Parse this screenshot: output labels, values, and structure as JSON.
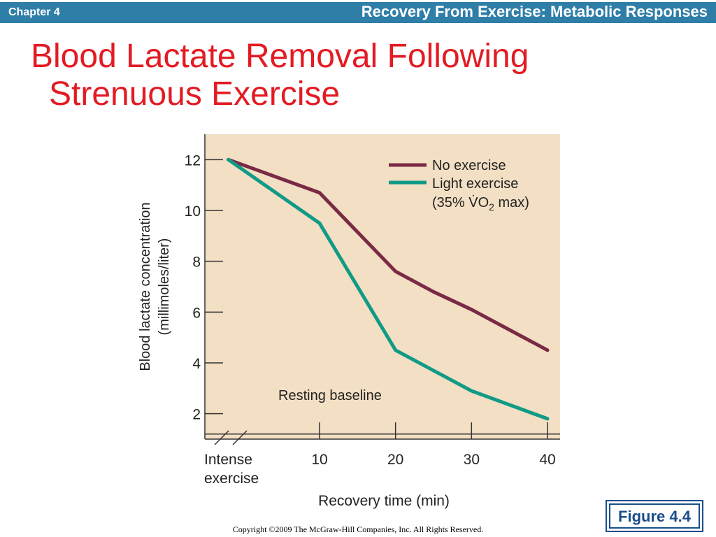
{
  "header": {
    "chapter": "Chapter 4",
    "section_title": "Recovery From Exercise: Metabolic Responses"
  },
  "slide": {
    "title_line1": "Blood Lactate Removal Following",
    "title_line2": "Strenuous Exercise"
  },
  "chart_data": {
    "type": "line",
    "ylabel_line1": "Blood lactate concentration",
    "ylabel_line2": "(millimoles/liter)",
    "xlabel": "Recovery time (min)",
    "ylim": [
      1,
      13
    ],
    "xlim": [
      -5,
      42
    ],
    "yticks": [
      2,
      4,
      6,
      8,
      10,
      12
    ],
    "xticks": [
      10,
      20,
      30,
      40
    ],
    "x_start_label_line1": "Intense",
    "x_start_label_line2": "exercise",
    "baseline": {
      "value": 1.2,
      "label": "Resting baseline"
    },
    "legend": {
      "placement": "top-right",
      "entries": [
        {
          "label": "No exercise"
        },
        {
          "label_line1": "Light exercise",
          "label_line2_prefix": "(35% V̇O",
          "label_line2_sub": "2",
          "label_line2_suffix": " max)"
        }
      ]
    },
    "series": [
      {
        "color": "#7a2a44",
        "points": [
          [
            -2,
            12.0
          ],
          [
            10,
            10.7
          ],
          [
            20,
            7.6
          ],
          [
            25,
            6.8
          ],
          [
            30,
            6.1
          ],
          [
            40,
            4.5
          ]
        ]
      },
      {
        "color": "#119a86",
        "points": [
          [
            -2,
            12.0
          ],
          [
            10,
            9.5
          ],
          [
            20,
            4.5
          ],
          [
            25,
            3.7
          ],
          [
            30,
            2.9
          ],
          [
            40,
            1.8
          ]
        ]
      }
    ],
    "background_color": "#f3dfc4"
  },
  "footer": {
    "figure_label": "Figure 4.4",
    "copyright": "Copyright ©2009 The McGraw-Hill Companies, Inc. All Rights Reserved."
  }
}
